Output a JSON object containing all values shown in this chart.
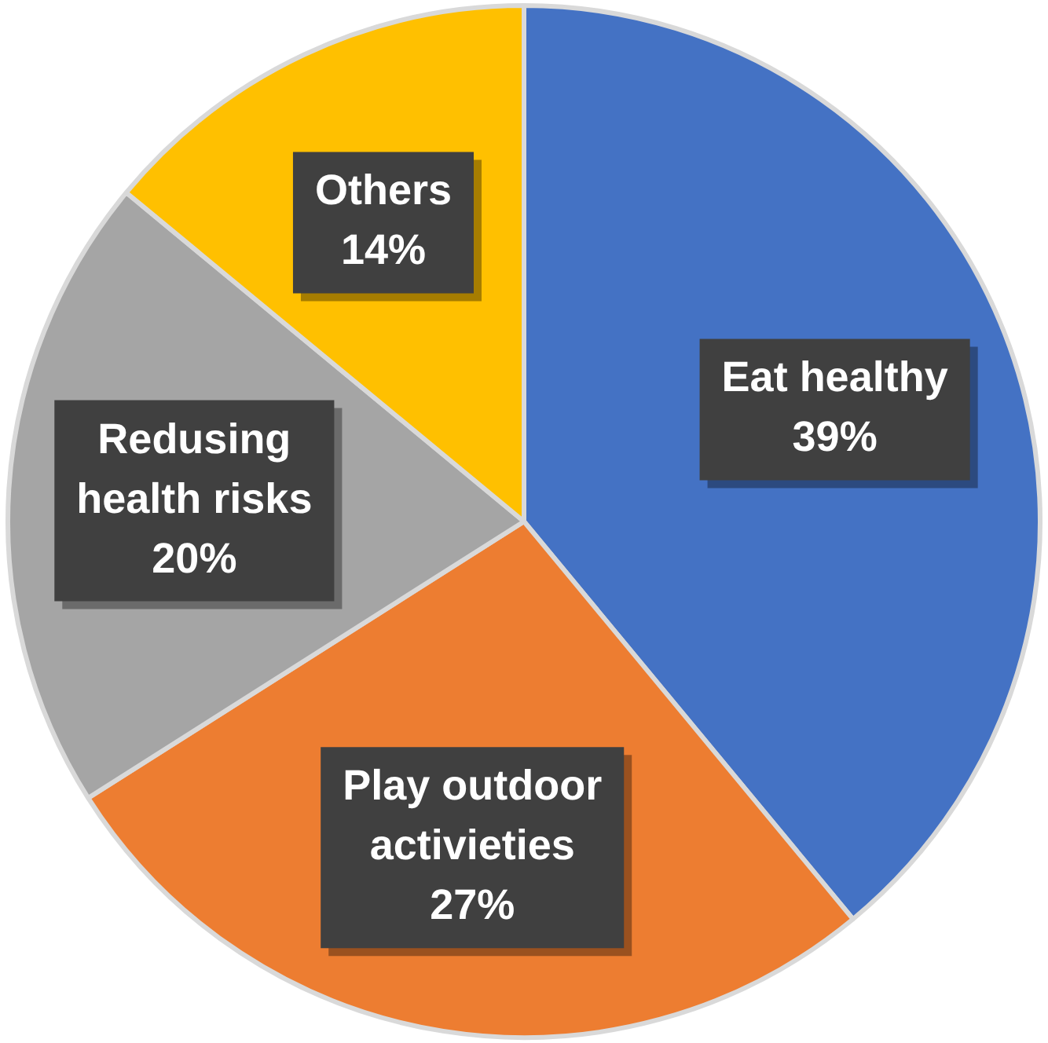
{
  "chart_data": {
    "type": "pie",
    "categories": [
      "Eat healthy",
      "Play outdoor activieties",
      "Redusing health risks",
      "Others"
    ],
    "values": [
      39,
      27,
      20,
      14
    ],
    "colors": [
      "#4472c4",
      "#ed7d31",
      "#a5a5a5",
      "#ffc000"
    ],
    "value_labels": [
      "39%",
      "27%",
      "20%",
      "14%"
    ],
    "legend": false
  }
}
